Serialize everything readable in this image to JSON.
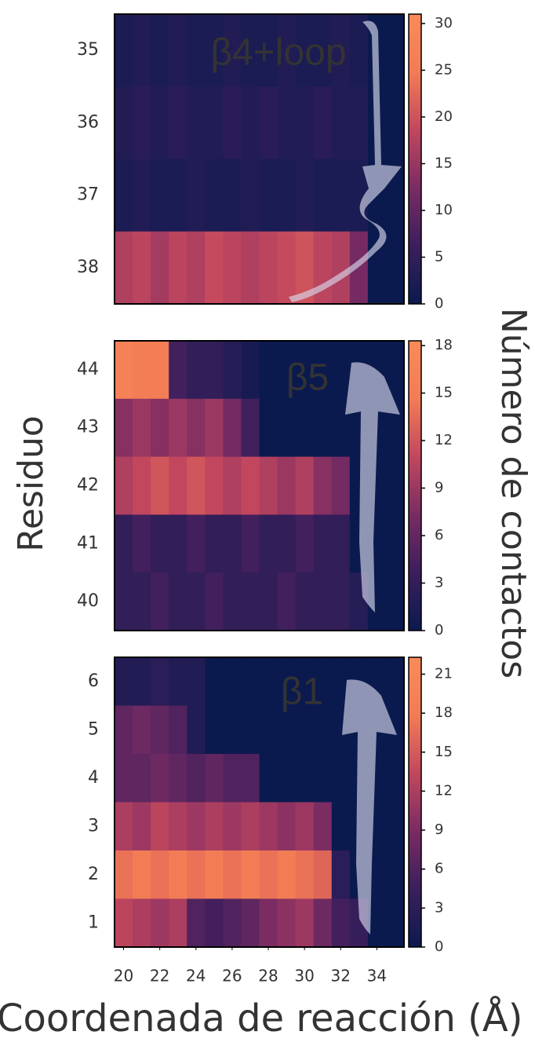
{
  "chart_data": [
    {
      "type": "heatmap",
      "annotation": "β4+loop",
      "categories": [
        "35",
        "36",
        "37",
        "38"
      ],
      "x": [
        20,
        21,
        22,
        23,
        24,
        25,
        26,
        27,
        28,
        29,
        30,
        31,
        32,
        33,
        34,
        35
      ],
      "values": [
        [
          2,
          3,
          2,
          3,
          2,
          2,
          3,
          2,
          2,
          3,
          2,
          2,
          3,
          2,
          0,
          0
        ],
        [
          3,
          4,
          3,
          4,
          3,
          3,
          4,
          3,
          4,
          3,
          3,
          4,
          3,
          3,
          0,
          0
        ],
        [
          2,
          3,
          2,
          2,
          3,
          2,
          2,
          3,
          2,
          2,
          3,
          2,
          2,
          2,
          0,
          0
        ],
        [
          17,
          18,
          16,
          18,
          17,
          19,
          18,
          17,
          18,
          19,
          20,
          18,
          17,
          12,
          0,
          0
        ]
      ],
      "xlim": [
        19.5,
        35.5
      ],
      "clim": [
        0,
        31
      ],
      "cticks": [
        0,
        5,
        10,
        15,
        20,
        25,
        30
      ],
      "colormap": [
        "#0b1a4e",
        "#3b1f5c",
        "#7a2b63",
        "#c2475e",
        "#f27c55",
        "#fa8a5a"
      ]
    },
    {
      "type": "heatmap",
      "annotation": "β5",
      "ylabel": "Residuo",
      "clabel": "Número de contactos",
      "categories": [
        "44",
        "43",
        "42",
        "41",
        "40"
      ],
      "x": [
        20,
        21,
        22,
        23,
        24,
        25,
        26,
        27,
        28,
        29,
        30,
        31,
        32,
        33,
        34,
        35
      ],
      "values": [
        [
          16,
          15,
          15,
          4,
          3,
          3,
          2,
          1,
          0,
          0,
          0,
          0,
          0,
          0,
          0,
          0
        ],
        [
          8,
          9,
          8,
          9,
          8,
          9,
          7,
          4,
          0,
          0,
          0,
          0,
          0,
          0,
          0,
          0
        ],
        [
          10,
          11,
          12,
          11,
          12,
          11,
          10,
          11,
          10,
          9,
          10,
          8,
          7,
          0,
          0,
          0
        ],
        [
          3,
          4,
          3,
          3,
          4,
          3,
          3,
          4,
          3,
          3,
          4,
          3,
          3,
          0,
          0,
          0
        ],
        [
          3,
          3,
          4,
          3,
          3,
          4,
          3,
          3,
          3,
          4,
          3,
          3,
          3,
          2,
          0,
          0
        ]
      ],
      "xlim": [
        19.5,
        35.5
      ],
      "clim": [
        0,
        18.3
      ],
      "cticks": [
        0,
        3,
        6,
        9,
        12,
        15,
        18
      ],
      "colormap": [
        "#0b1a4e",
        "#3b1f5c",
        "#7a2b63",
        "#c2475e",
        "#f27c55",
        "#fa8a5a"
      ]
    },
    {
      "type": "heatmap",
      "annotation": "β1",
      "xlabel": "Coordenada de reacción (Å)",
      "categories": [
        "6",
        "5",
        "4",
        "3",
        "2",
        "1"
      ],
      "x": [
        20,
        21,
        22,
        23,
        24,
        25,
        26,
        27,
        28,
        29,
        30,
        31,
        32,
        33,
        34,
        35
      ],
      "values": [
        [
          2,
          2,
          3,
          2,
          2,
          0,
          0,
          0,
          0,
          0,
          0,
          0,
          0,
          0,
          0,
          0
        ],
        [
          7,
          8,
          7,
          6,
          2,
          0,
          0,
          0,
          0,
          0,
          0,
          0,
          0,
          0,
          0,
          0
        ],
        [
          7,
          7,
          8,
          7,
          6,
          7,
          6,
          6,
          0,
          0,
          0,
          0,
          0,
          0,
          0,
          0
        ],
        [
          12,
          11,
          13,
          12,
          11,
          12,
          11,
          12,
          11,
          10,
          11,
          9,
          0,
          0,
          0,
          0
        ],
        [
          17,
          18,
          17,
          18,
          17,
          18,
          17,
          18,
          17,
          18,
          17,
          16,
          3,
          0,
          0,
          0
        ],
        [
          13,
          12,
          11,
          12,
          6,
          5,
          6,
          7,
          9,
          10,
          11,
          8,
          5,
          4,
          0,
          0
        ]
      ],
      "xlim": [
        19.5,
        35.5
      ],
      "xticks": [
        20,
        22,
        24,
        26,
        28,
        30,
        32,
        34
      ],
      "clim": [
        0,
        22.3
      ],
      "cticks": [
        0,
        3,
        6,
        9,
        12,
        15,
        18,
        21
      ],
      "colormap": [
        "#0b1a4e",
        "#3b1f5c",
        "#7a2b63",
        "#c2475e",
        "#f27c55",
        "#fa8a5a"
      ]
    }
  ]
}
